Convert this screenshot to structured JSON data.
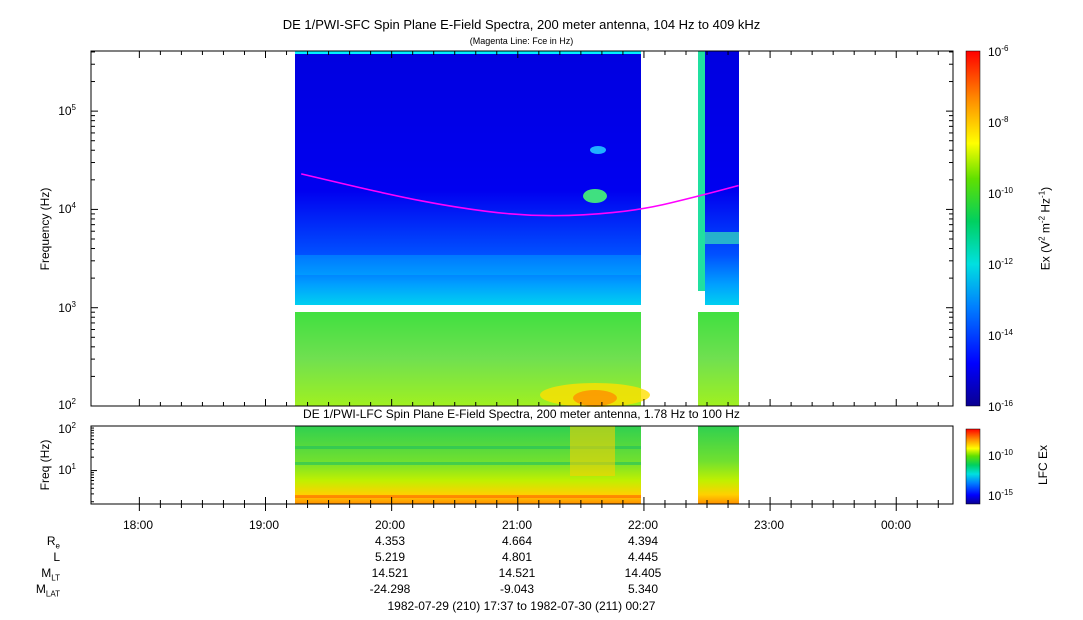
{
  "chart_data": [
    {
      "type": "heatmap",
      "title": "DE 1/PWI-SFC  Spin Plane E-Field Spectra, 200 meter antenna, 104 Hz to 409 kHz",
      "subtitle": "(Magenta Line: Fce in Hz)",
      "ylabel": "Frequency (Hz)",
      "yscale": "log",
      "ylim": [
        100,
        409000
      ],
      "yticks": [
        "10^2",
        "10^3",
        "10^4",
        "10^5"
      ],
      "xticks": [
        "18:00",
        "19:00",
        "20:00",
        "21:00",
        "22:00",
        "23:00",
        "00:00"
      ],
      "data_intervals_utc": [
        [
          "19:17",
          "21:59"
        ],
        [
          "22:25",
          "22:45"
        ]
      ],
      "fce_line": {
        "color": "#ff00ff",
        "time": [
          "19:17",
          "20:00",
          "20:30",
          "21:00",
          "21:30",
          "22:00",
          "22:25",
          "22:45"
        ],
        "hz": [
          23000,
          14000,
          10500,
          8700,
          8600,
          10000,
          13500,
          17500
        ]
      },
      "colorbar": {
        "label": "Ex (V² m⁻² Hz⁻¹)",
        "scale": "log",
        "range": [
          1e-16,
          1e-06
        ],
        "ticks": [
          "10^-6",
          "10^-8",
          "10^-10",
          "10^-12",
          "10^-14",
          "10^-16"
        ]
      }
    },
    {
      "type": "heatmap",
      "title": "DE 1/PWI-LFC  Spin Plane E-Field Spectra, 200 meter antenna, 1.78 Hz to 100 Hz",
      "ylabel": "Freq (Hz)",
      "yscale": "log",
      "ylim": [
        1.78,
        100
      ],
      "yticks": [
        "10^1",
        "10^2"
      ],
      "colorbar": {
        "label": "LFC Ex",
        "scale": "log",
        "ticks": [
          "10^-10",
          "10^-15"
        ]
      }
    }
  ],
  "orbit": {
    "labels": [
      {
        "main": "R",
        "sub": "e"
      },
      {
        "main": "L",
        "sub": ""
      },
      {
        "main": "M",
        "sub": "LT"
      },
      {
        "main": "M",
        "sub": "LAT"
      }
    ],
    "columns": [
      {
        "time": "20:00",
        "values": [
          "4.353",
          "5.219",
          "14.521",
          "-24.298"
        ]
      },
      {
        "time": "21:00",
        "values": [
          "4.664",
          "4.801",
          "14.521",
          "-9.043"
        ]
      },
      {
        "time": "22:00",
        "values": [
          "4.394",
          "4.445",
          "14.405",
          "5.340"
        ]
      }
    ]
  },
  "time_range": "1982-07-29 (210) 17:37 to 1982-07-30 (211) 00:27",
  "colors": {
    "background": "#0000b0",
    "fce_line": "#ff00ff"
  }
}
